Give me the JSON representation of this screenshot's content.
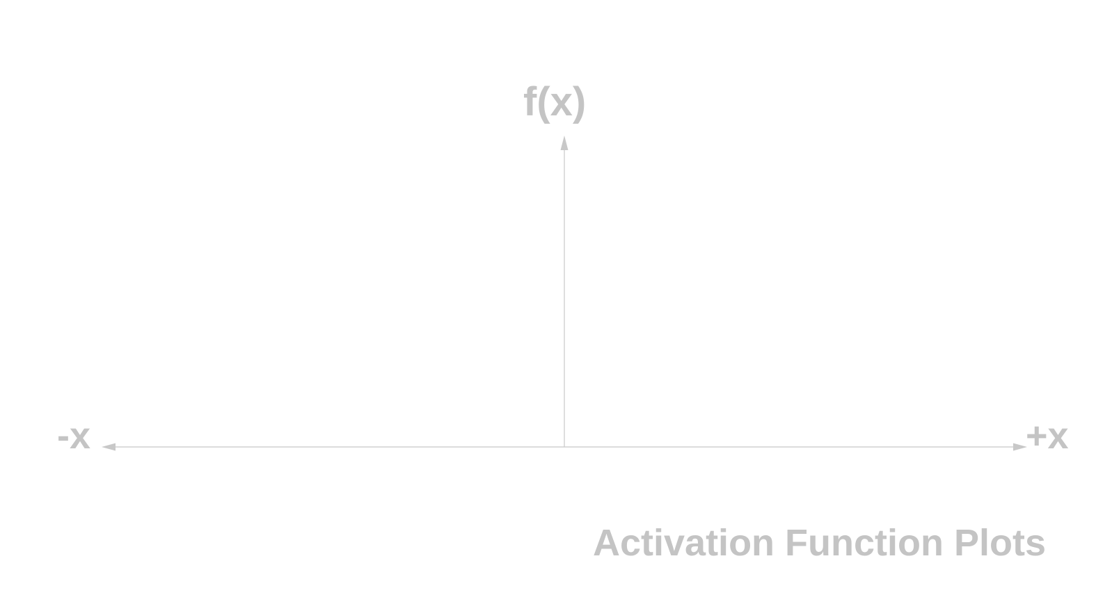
{
  "diagram": {
    "y_axis_label": "f(x)",
    "x_axis_negative_label": "-x",
    "x_axis_positive_label": "+x",
    "title": "Activation Function Plots"
  },
  "colors": {
    "text": "#c4c4c4",
    "axis": "#c8c8c8",
    "background": "#ffffff"
  }
}
